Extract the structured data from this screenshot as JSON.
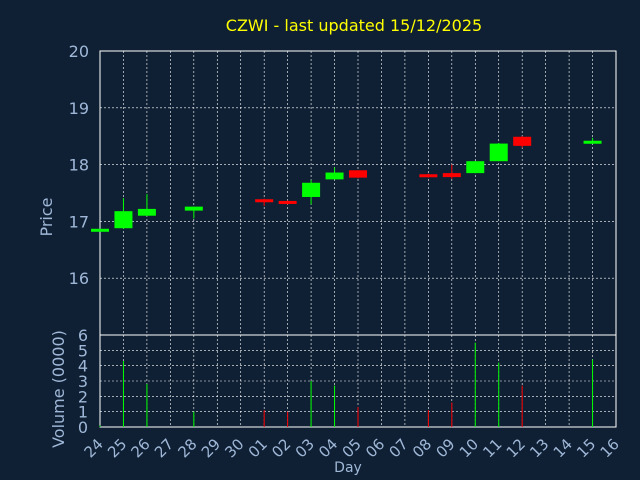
{
  "colors": {
    "background": "#102034",
    "frame": "#ffffff",
    "grid": "#ffffff",
    "title": "#ffff00",
    "axis_text": "#9fb8d8",
    "up": "#00ff00",
    "down": "#ff0000"
  },
  "chart_data": [
    {
      "type": "candlestick",
      "title": "CZWI - last updated 15/12/2025",
      "ylabel": "Price",
      "ylim": [
        15,
        20
      ],
      "yticks": [
        16,
        17,
        18,
        19,
        20
      ],
      "grid": true,
      "x_labels": [
        "24",
        "25",
        "26",
        "27",
        "28",
        "29",
        "30",
        "01",
        "02",
        "03",
        "04",
        "05",
        "06",
        "07",
        "08",
        "09",
        "10",
        "11",
        "12",
        "13",
        "14",
        "15",
        "16"
      ],
      "candles": [
        {
          "x": "24",
          "open": 16.83,
          "close": 16.87,
          "high": 16.87,
          "low": 16.83
        },
        {
          "x": "25",
          "open": 16.88,
          "close": 17.18,
          "high": 17.41,
          "low": 16.87
        },
        {
          "x": "26",
          "open": 17.1,
          "close": 17.22,
          "high": 17.48,
          "low": 17.1
        },
        {
          "x": "28",
          "open": 17.19,
          "close": 17.26,
          "high": 17.26,
          "low": 17.05
        },
        {
          "x": "01",
          "open": 17.39,
          "close": 17.35,
          "high": 17.4,
          "low": 17.27
        },
        {
          "x": "02",
          "open": 17.36,
          "close": 17.32,
          "high": 17.37,
          "low": 17.3
        },
        {
          "x": "03",
          "open": 17.43,
          "close": 17.68,
          "high": 17.73,
          "low": 17.3
        },
        {
          "x": "04",
          "open": 17.74,
          "close": 17.86,
          "high": 17.95,
          "low": 17.74
        },
        {
          "x": "05",
          "open": 17.9,
          "close": 17.77,
          "high": 17.9,
          "low": 17.76
        },
        {
          "x": "08",
          "open": 17.83,
          "close": 17.78,
          "high": 17.84,
          "low": 17.77
        },
        {
          "x": "09",
          "open": 17.85,
          "close": 17.78,
          "high": 18.0,
          "low": 17.75
        },
        {
          "x": "10",
          "open": 17.85,
          "close": 18.06,
          "high": 18.06,
          "low": 17.85
        },
        {
          "x": "11",
          "open": 18.06,
          "close": 18.37,
          "high": 18.38,
          "low": 18.06
        },
        {
          "x": "12",
          "open": 18.49,
          "close": 18.33,
          "high": 18.5,
          "low": 18.3
        },
        {
          "x": "15",
          "open": 18.39,
          "close": 18.42,
          "high": 18.47,
          "low": 18.37
        }
      ]
    },
    {
      "type": "bar",
      "title": "",
      "xlabel": "Day",
      "ylabel": "Volume (0000)",
      "ylim": [
        0,
        6
      ],
      "yticks": [
        0,
        1,
        2,
        3,
        4,
        5,
        6
      ],
      "grid": true,
      "categories": [
        "24",
        "25",
        "26",
        "28",
        "01",
        "02",
        "03",
        "04",
        "05",
        "08",
        "09",
        "10",
        "11",
        "12",
        "15"
      ],
      "values": [
        0.1,
        4.3,
        2.8,
        1.0,
        1.1,
        1.0,
        3.0,
        2.7,
        1.3,
        1.1,
        1.6,
        5.5,
        4.2,
        2.7,
        4.4
      ],
      "direction": [
        "up",
        "up",
        "up",
        "up",
        "down",
        "down",
        "up",
        "up",
        "down",
        "down",
        "down",
        "up",
        "up",
        "down",
        "up"
      ]
    }
  ]
}
